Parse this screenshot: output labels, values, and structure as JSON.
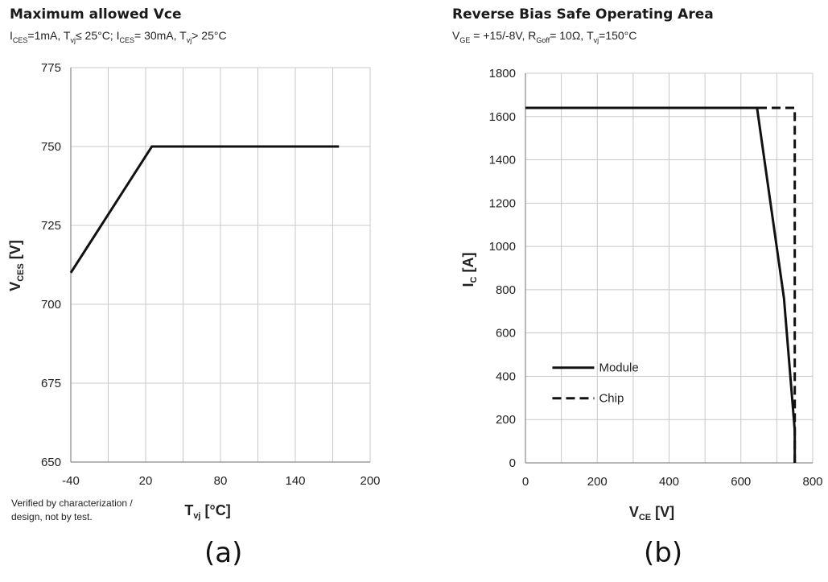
{
  "chart_data": [
    {
      "type": "line",
      "title": "Maximum allowed Vce",
      "subtitle": {
        "parts": [
          {
            "t": "I"
          },
          {
            "t": "CES",
            "sub": true
          },
          {
            "t": "=1mA, T"
          },
          {
            "t": "vj",
            "sub": true
          },
          {
            "t": "≤ 25°C; I"
          },
          {
            "t": "CES",
            "sub": true
          },
          {
            "t": "= 30mA, T"
          },
          {
            "t": "vj",
            "sub": true
          },
          {
            "t": "> 25°C"
          }
        ]
      },
      "xlabel": {
        "main": "T",
        "sub": "vj",
        "unit": " [°C]"
      },
      "ylabel": {
        "main": "V",
        "sub": "CES",
        "unit": " [V]"
      },
      "xlim": [
        -40,
        200
      ],
      "ylim": [
        650,
        775
      ],
      "xticks": [
        -40,
        20,
        80,
        140,
        200
      ],
      "xgrid": [
        -40,
        -10,
        20,
        50,
        80,
        110,
        140,
        170,
        200
      ],
      "yticks": [
        650,
        675,
        700,
        725,
        750,
        775
      ],
      "grid": true,
      "series": [
        {
          "x": [
            -40,
            25,
            175
          ],
          "y": [
            710,
            750,
            750
          ],
          "style": "solid"
        }
      ],
      "note": [
        "Verified by characterization /",
        "design, not by test."
      ],
      "panel_label": "(a)"
    },
    {
      "type": "line",
      "title": "Reverse Bias Safe Operating Area",
      "subtitle": {
        "parts": [
          {
            "t": "V"
          },
          {
            "t": "GE",
            "sub": true
          },
          {
            "t": " = +15/-8V, R"
          },
          {
            "t": "Goff",
            "sub": true
          },
          {
            "t": "= 10Ω,  T"
          },
          {
            "t": "vj",
            "sub": true
          },
          {
            "t": "=150°C"
          }
        ]
      },
      "xlabel": {
        "main": "V",
        "sub": "CE",
        "unit": " [V]"
      },
      "ylabel": {
        "main": "I",
        "sub": "C",
        "unit": " [A]"
      },
      "xlim": [
        0,
        800
      ],
      "ylim": [
        0,
        1800
      ],
      "xticks": [
        0,
        200,
        400,
        600,
        800
      ],
      "xgrid": [
        0,
        100,
        200,
        300,
        400,
        500,
        600,
        700,
        800
      ],
      "yticks": [
        0,
        200,
        400,
        600,
        800,
        1000,
        1200,
        1400,
        1600,
        1800
      ],
      "grid": true,
      "legend_position": "lower-left",
      "series": [
        {
          "name": "Module",
          "x": [
            0,
            645,
            720,
            750,
            750
          ],
          "y": [
            1640,
            1640,
            760,
            150,
            0
          ],
          "style": "solid"
        },
        {
          "name": "Chip",
          "x": [
            0,
            750,
            750
          ],
          "y": [
            1640,
            1640,
            0
          ],
          "style": "dashed"
        }
      ],
      "panel_label": "(b)"
    }
  ],
  "colors": {
    "line": "#111111",
    "grid": "#c8c8c8",
    "axis": "#8a8a8a"
  }
}
